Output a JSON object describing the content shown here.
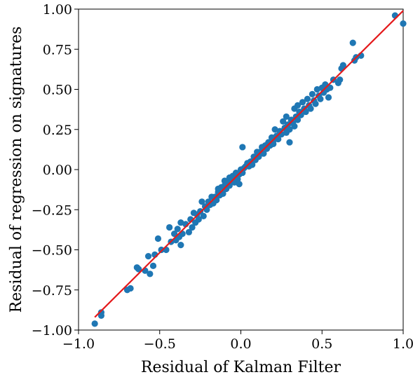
{
  "chart_data": {
    "type": "scatter",
    "title": "",
    "xlabel": "Residual of Kalman Filter",
    "ylabel": "Residual of regression on signatures",
    "xlim": [
      -1.0,
      1.0
    ],
    "ylim": [
      -1.0,
      1.0
    ],
    "x_ticks": [
      -1.0,
      -0.5,
      0.0,
      0.5,
      1.0
    ],
    "x_tick_labels": [
      "−1.0",
      "−0.5",
      "0.0",
      "0.5",
      "1.0"
    ],
    "y_ticks": [
      -1.0,
      -0.75,
      -0.5,
      -0.25,
      0.0,
      0.25,
      0.5,
      0.75,
      1.0
    ],
    "y_tick_labels": [
      "−1.00",
      "−0.75",
      "−0.50",
      "−0.25",
      "0.00",
      "0.25",
      "0.50",
      "0.75",
      "1.00"
    ],
    "grid": false,
    "colors": {
      "points": "#1f77b4",
      "fit_line": "#e41a1c"
    },
    "series": [
      {
        "type": "scatter",
        "points": [
          [
            -0.9,
            -0.96
          ],
          [
            -0.86,
            -0.89
          ],
          [
            -0.86,
            -0.91
          ],
          [
            -0.7,
            -0.75
          ],
          [
            -0.68,
            -0.74
          ],
          [
            -0.64,
            -0.61
          ],
          [
            -0.63,
            -0.62
          ],
          [
            -0.59,
            -0.63
          ],
          [
            -0.57,
            -0.54
          ],
          [
            -0.56,
            -0.65
          ],
          [
            -0.54,
            -0.6
          ],
          [
            -0.53,
            -0.53
          ],
          [
            -0.51,
            -0.43
          ],
          [
            -0.49,
            -0.5
          ],
          [
            -0.46,
            -0.5
          ],
          [
            -0.44,
            -0.36
          ],
          [
            -0.43,
            -0.45
          ],
          [
            -0.41,
            -0.4
          ],
          [
            -0.4,
            -0.44
          ],
          [
            -0.39,
            -0.37
          ],
          [
            -0.38,
            -0.42
          ],
          [
            -0.37,
            -0.33
          ],
          [
            -0.37,
            -0.47
          ],
          [
            -0.36,
            -0.4
          ],
          [
            -0.34,
            -0.34
          ],
          [
            -0.32,
            -0.39
          ],
          [
            -0.31,
            -0.31
          ],
          [
            -0.3,
            -0.36
          ],
          [
            -0.29,
            -0.27
          ],
          [
            -0.28,
            -0.33
          ],
          [
            -0.27,
            -0.28
          ],
          [
            -0.26,
            -0.31
          ],
          [
            -0.25,
            -0.26
          ],
          [
            -0.24,
            -0.2
          ],
          [
            -0.23,
            -0.29
          ],
          [
            -0.22,
            -0.23
          ],
          [
            -0.21,
            -0.25
          ],
          [
            -0.2,
            -0.2
          ],
          [
            -0.19,
            -0.22
          ],
          [
            -0.18,
            -0.17
          ],
          [
            -0.17,
            -0.21
          ],
          [
            -0.16,
            -0.17
          ],
          [
            -0.15,
            -0.19
          ],
          [
            -0.14,
            -0.14
          ],
          [
            -0.14,
            -0.12
          ],
          [
            -0.13,
            -0.16
          ],
          [
            -0.12,
            -0.11
          ],
          [
            -0.11,
            -0.15
          ],
          [
            -0.1,
            -0.1
          ],
          [
            -0.1,
            -0.07
          ],
          [
            -0.09,
            -0.12
          ],
          [
            -0.08,
            -0.08
          ],
          [
            -0.07,
            -0.05
          ],
          [
            -0.07,
            -0.1
          ],
          [
            -0.06,
            -0.07
          ],
          [
            -0.05,
            -0.04
          ],
          [
            -0.04,
            -0.08
          ],
          [
            -0.03,
            -0.02
          ],
          [
            -0.02,
            -0.06
          ],
          [
            -0.01,
            -0.03
          ],
          [
            -0.01,
            -0.09
          ],
          [
            0.0,
            0.0
          ],
          [
            0.01,
            -0.02
          ],
          [
            0.01,
            0.14
          ],
          [
            0.02,
            0.01
          ],
          [
            0.03,
            0.02
          ],
          [
            0.04,
            0.04
          ],
          [
            0.05,
            0.02
          ],
          [
            0.06,
            0.05
          ],
          [
            0.07,
            0.03
          ],
          [
            0.08,
            0.08
          ],
          [
            0.09,
            0.06
          ],
          [
            0.1,
            0.11
          ],
          [
            0.11,
            0.08
          ],
          [
            0.12,
            0.11
          ],
          [
            0.13,
            0.14
          ],
          [
            0.14,
            0.1
          ],
          [
            0.15,
            0.15
          ],
          [
            0.16,
            0.13
          ],
          [
            0.17,
            0.17
          ],
          [
            0.18,
            0.15
          ],
          [
            0.19,
            0.2
          ],
          [
            0.2,
            0.16
          ],
          [
            0.21,
            0.19
          ],
          [
            0.21,
            0.25
          ],
          [
            0.22,
            0.21
          ],
          [
            0.23,
            0.19
          ],
          [
            0.24,
            0.24
          ],
          [
            0.25,
            0.22
          ],
          [
            0.26,
            0.3
          ],
          [
            0.27,
            0.26
          ],
          [
            0.28,
            0.23
          ],
          [
            0.28,
            0.33
          ],
          [
            0.29,
            0.28
          ],
          [
            0.3,
            0.25
          ],
          [
            0.3,
            0.17
          ],
          [
            0.31,
            0.31
          ],
          [
            0.32,
            0.29
          ],
          [
            0.33,
            0.27
          ],
          [
            0.33,
            0.38
          ],
          [
            0.34,
            0.33
          ],
          [
            0.35,
            0.31
          ],
          [
            0.35,
            0.4
          ],
          [
            0.36,
            0.36
          ],
          [
            0.37,
            0.34
          ],
          [
            0.38,
            0.42
          ],
          [
            0.39,
            0.38
          ],
          [
            0.4,
            0.36
          ],
          [
            0.41,
            0.44
          ],
          [
            0.42,
            0.4
          ],
          [
            0.43,
            0.38
          ],
          [
            0.44,
            0.47
          ],
          [
            0.45,
            0.43
          ],
          [
            0.46,
            0.41
          ],
          [
            0.47,
            0.5
          ],
          [
            0.48,
            0.46
          ],
          [
            0.49,
            0.44
          ],
          [
            0.5,
            0.51
          ],
          [
            0.51,
            0.48
          ],
          [
            0.52,
            0.53
          ],
          [
            0.53,
            0.5
          ],
          [
            0.54,
            0.45
          ],
          [
            0.55,
            0.51
          ],
          [
            0.57,
            0.56
          ],
          [
            0.6,
            0.54
          ],
          [
            0.61,
            0.56
          ],
          [
            0.62,
            0.63
          ],
          [
            0.63,
            0.65
          ],
          [
            0.69,
            0.79
          ],
          [
            0.7,
            0.68
          ],
          [
            0.71,
            0.7
          ],
          [
            0.74,
            0.71
          ],
          [
            0.95,
            0.96
          ],
          [
            1.0,
            0.91
          ]
        ]
      },
      {
        "type": "line",
        "x": [
          -0.9,
          1.0
        ],
        "y": [
          -0.92,
          0.99
        ]
      }
    ]
  }
}
